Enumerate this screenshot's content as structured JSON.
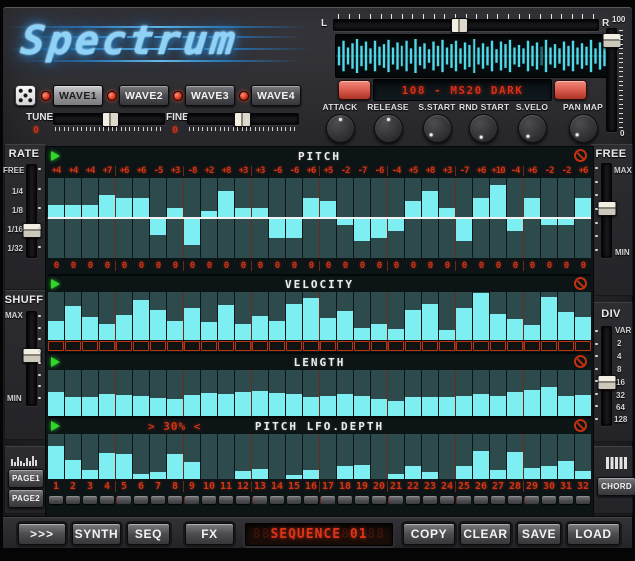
{
  "app": {
    "title": "Spectrum"
  },
  "top_right": {
    "left_label": "L",
    "right_label": "R",
    "lr_slider_pct": 47,
    "patch_display": "108 - MS20 DARK",
    "knobs": [
      {
        "label": "ATTACK",
        "angle": 0
      },
      {
        "label": "RELEASE",
        "angle": 0
      },
      {
        "label": "S.START",
        "angle": 225
      },
      {
        "label": "RND START",
        "angle": 195
      },
      {
        "label": "S.VELO",
        "angle": 210
      },
      {
        "label": "PAN MAP",
        "angle": 225
      }
    ],
    "volume": {
      "top_label": "100",
      "bottom_label": "0",
      "value_pct": 96
    },
    "waveform": [
      0.55,
      0.9,
      0.5,
      0.75,
      1,
      0.6,
      0.85,
      0.45,
      0.9,
      0.55,
      0.7,
      0.95,
      0.5,
      0.8,
      0.6,
      0.9,
      0.45,
      1,
      0.55,
      0.75,
      0.4,
      0.85,
      0.6,
      0.95,
      0.5,
      0.7,
      0.9,
      0.45,
      0.8,
      0.65,
      1,
      0.5,
      0.75,
      0.55,
      0.9,
      0.4,
      0.85,
      0.7,
      0.95,
      0.5,
      0.65,
      0.45,
      0.9,
      0.6,
      0.8,
      0.55,
      0.95,
      0.5,
      0.7,
      0.45,
      0.85,
      0.6,
      0.9,
      0.5,
      0.75,
      0.55,
      0.95,
      0.45,
      0.8,
      0.6
    ]
  },
  "wave_select": {
    "buttons": [
      {
        "label": "WAVE1",
        "selected": true
      },
      {
        "label": "WAVE2",
        "selected": false
      },
      {
        "label": "WAVE3",
        "selected": false
      },
      {
        "label": "WAVE4",
        "selected": false
      }
    ]
  },
  "tune": {
    "label": "TUNE",
    "value": "0",
    "slider_pct": 50
  },
  "fine": {
    "label": "FINE",
    "value": "0",
    "slider_pct": 48
  },
  "left_panel": {
    "rate": {
      "label": "RATE",
      "options": [
        "FREE",
        "1/4",
        "1/8",
        "1/16",
        "1/32"
      ],
      "selected": "1/16",
      "handle_pct": 74
    },
    "shuff": {
      "label": "SHUFF",
      "max_label": "MAX",
      "min_label": "MIN",
      "handle_pct": 45
    },
    "page1": "PAGE1",
    "page2": "PAGE2"
  },
  "right_panel": {
    "free": {
      "label": "FREE",
      "max_label": "MAX",
      "min_label": "MIN",
      "handle_pct": 46
    },
    "div": {
      "label": "DIV",
      "options": [
        "VAR",
        "2",
        "4",
        "8",
        "16",
        "32",
        "64",
        "128"
      ],
      "selected": "16",
      "handle_pct": 56
    },
    "chord_label": "CHORD"
  },
  "sequencer": {
    "steps": 32,
    "step_numbers": [
      "1",
      "2",
      "3",
      "4",
      "5",
      "6",
      "7",
      "8",
      "9",
      "10",
      "11",
      "12",
      "13",
      "14",
      "15",
      "16",
      "17",
      "18",
      "19",
      "20",
      "21",
      "22",
      "23",
      "24",
      "25",
      "26",
      "27",
      "28",
      "29",
      "30",
      "31",
      "32"
    ],
    "pitch": {
      "title": "PITCH",
      "range": 12,
      "values": [
        "+4",
        "+4",
        "+4",
        "+7",
        "+6",
        "+6",
        "-5",
        "+3",
        "-8",
        "+2",
        "+8",
        "+3",
        "+3",
        "-6",
        "-6",
        "+6",
        "+5",
        "-2",
        "-7",
        "-6",
        "-4",
        "+5",
        "+8",
        "+3",
        "-7",
        "+6",
        "+10",
        "-4",
        "+6",
        "-2",
        "-2",
        "+6"
      ],
      "zero_value": "0"
    },
    "velocity": {
      "title": "VELOCITY",
      "values_pct": [
        39,
        71,
        48,
        33,
        52,
        83,
        62,
        40,
        66,
        37,
        73,
        34,
        50,
        39,
        74,
        87,
        46,
        61,
        26,
        33,
        23,
        62,
        76,
        21,
        66,
        97,
        54,
        43,
        32,
        90,
        59,
        48
      ]
    },
    "length": {
      "title": "LENGTH",
      "values_pct": [
        52,
        42,
        42,
        48,
        45,
        43,
        40,
        38,
        45,
        50,
        47,
        52,
        55,
        50,
        47,
        42,
        44,
        47,
        44,
        36,
        32,
        42,
        42,
        42,
        44,
        47,
        44,
        52,
        56,
        62,
        44,
        46
      ]
    },
    "lfo": {
      "title": "PITCH LFO.DEPTH",
      "depth_label": "> 30% <",
      "values_pct": [
        74,
        42,
        20,
        58,
        55,
        12,
        15,
        55,
        38,
        0,
        0,
        18,
        22,
        0,
        8,
        20,
        0,
        30,
        32,
        0,
        12,
        30,
        15,
        0,
        30,
        62,
        20,
        60,
        25,
        30,
        40,
        18
      ]
    }
  },
  "toolbar": {
    "nav_label": ">>>",
    "buttons": [
      "SYNTH",
      "SEQ",
      "FX"
    ],
    "display": {
      "ghost_left": "88",
      "label": "SEQUENCE",
      "ghost_mid": "8",
      "number": "01",
      "ghost_right": "88"
    },
    "right_buttons": [
      "COPY",
      "CLEAR",
      "SAVE",
      "LOAD"
    ]
  }
}
